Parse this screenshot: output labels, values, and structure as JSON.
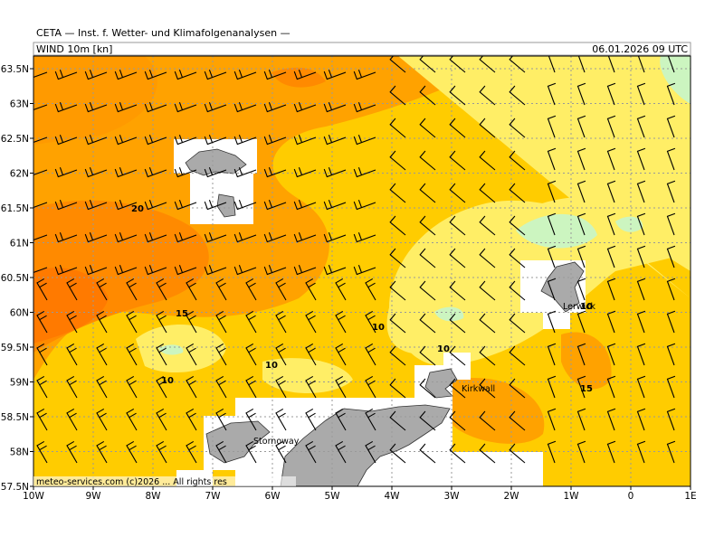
{
  "header": {
    "title": "CETA — Inst. f. Wetter- und Klimafolgenanalysen —",
    "field": "WIND 10m [kn]",
    "valid_time": "06.01.2026 09 UTC"
  },
  "map": {
    "lat_labels": [
      "63.5N",
      "63N",
      "62.5N",
      "62N",
      "61.5N",
      "61N",
      "60.5N",
      "60N",
      "59.5N",
      "59N",
      "58.5N",
      "58N",
      "57.5N"
    ],
    "lon_labels": [
      "10W",
      "9W",
      "8W",
      "7W",
      "6W",
      "5W",
      "4W",
      "3W",
      "2W",
      "1W",
      "0",
      "1E"
    ],
    "contour_labels": [
      "20",
      "15",
      "10",
      "10",
      "10",
      "10",
      "10",
      "15"
    ],
    "places": [
      "Stornoway",
      "Lerwick",
      "Kirkwall"
    ],
    "footer": "meteo-services.com (c)2026 ... All rights res"
  }
}
